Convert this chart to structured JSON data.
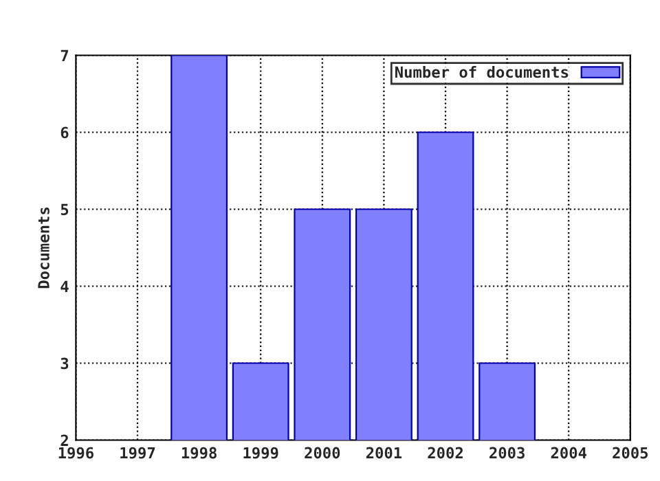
{
  "chart_data": {
    "type": "bar",
    "ylabel": "Documents",
    "x": [
      1998,
      1999,
      2000,
      2001,
      2002,
      2003
    ],
    "series": [
      {
        "name": "Number of documents",
        "color": "#8080ff",
        "values": [
          7,
          3,
          5,
          5,
          6,
          3
        ]
      }
    ],
    "xlim": [
      1996,
      2005
    ],
    "xticks": [
      1996,
      1997,
      1998,
      1999,
      2000,
      2001,
      2002,
      2003,
      2004,
      2005
    ],
    "ylim": [
      2,
      7
    ],
    "yticks": [
      2,
      3,
      4,
      5,
      6,
      7
    ],
    "grid": true,
    "legend": "top right"
  }
}
